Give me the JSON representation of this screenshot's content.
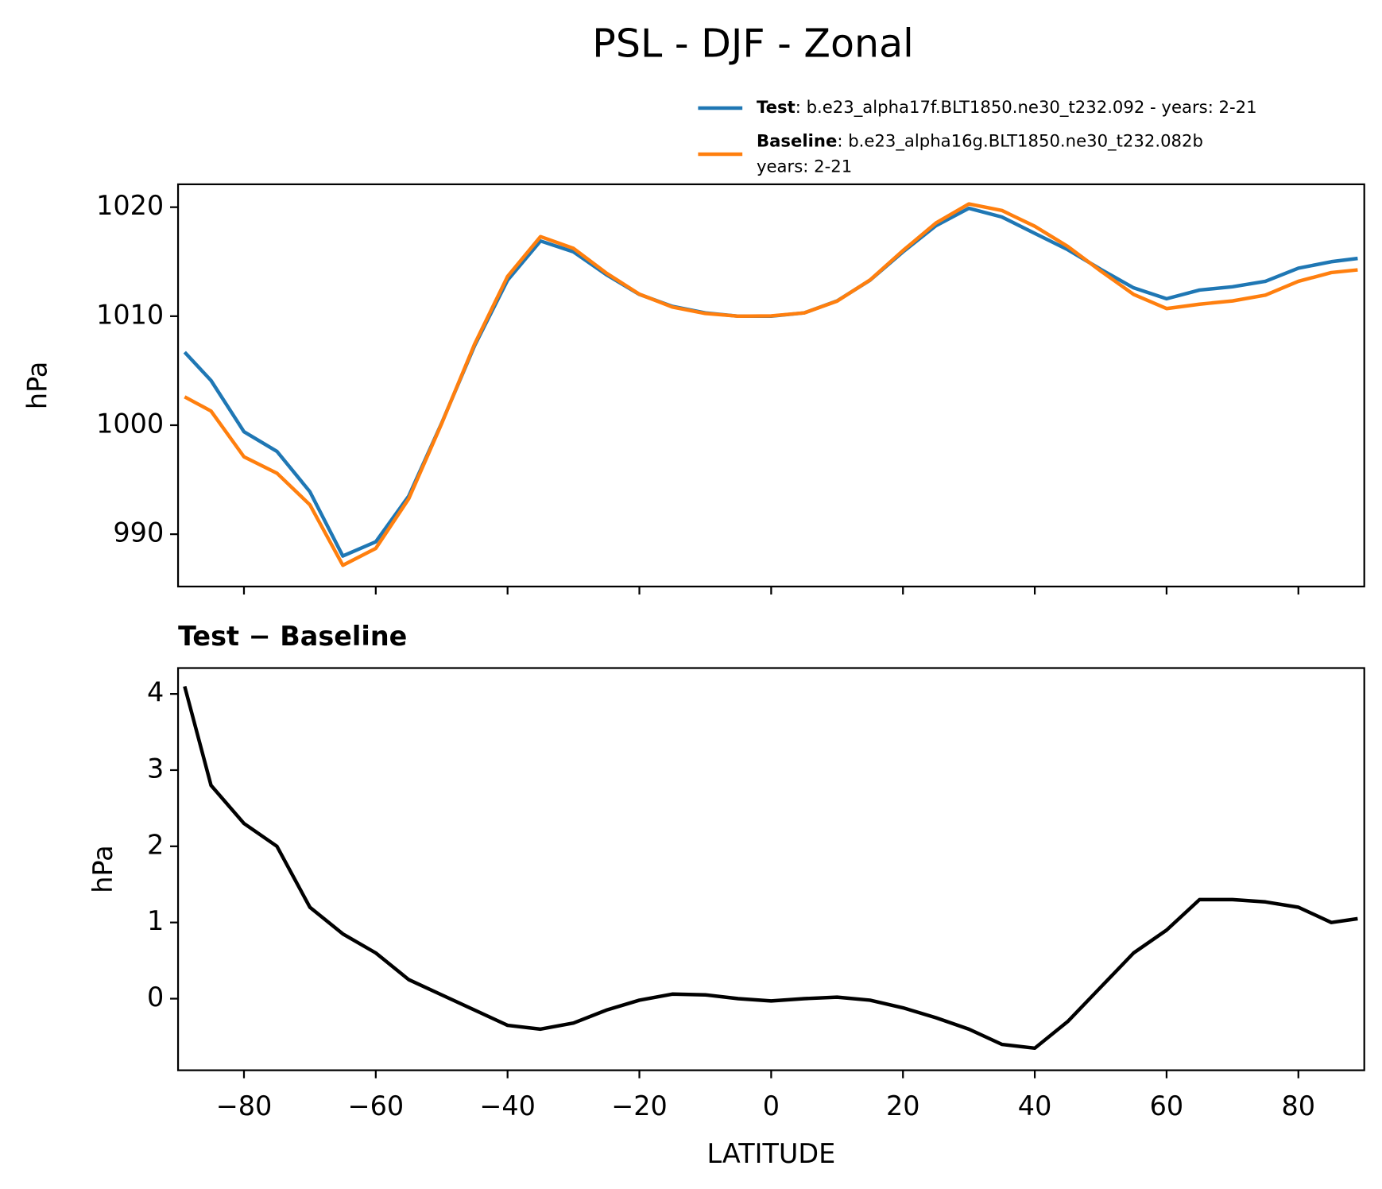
{
  "chart_data": [
    {
      "type": "line",
      "title": "PSL - DJF - Zonal",
      "ylabel": "hPa",
      "x": [
        -89,
        -85,
        -80,
        -75,
        -70,
        -65,
        -60,
        -55,
        -50,
        -45,
        -40,
        -35,
        -30,
        -25,
        -20,
        -15,
        -10,
        -5,
        0,
        5,
        10,
        15,
        20,
        25,
        30,
        35,
        40,
        45,
        50,
        55,
        60,
        65,
        70,
        75,
        80,
        85,
        89
      ],
      "series": [
        {
          "name": "Test",
          "description": [
            ": b.e23_alpha17f.BLT1850.ne30_t232.092 - years: 2-21"
          ],
          "color": "#1f77b4",
          "values": [
            1006.7,
            1004.1,
            999.4,
            997.6,
            993.9,
            988.0,
            989.3,
            993.5,
            1000.2,
            1007.3,
            1013.3,
            1016.9,
            1015.9,
            1013.8,
            1012.0,
            1010.9,
            1010.3,
            1010.0,
            1010.0,
            1010.3,
            1011.4,
            1013.3,
            1015.9,
            1018.3,
            1019.9,
            1019.1,
            1017.6,
            1016.1,
            1014.3,
            1012.6,
            1011.6,
            1012.4,
            1012.7,
            1013.2,
            1014.4,
            1015.0,
            1015.3
          ]
        },
        {
          "name": "Baseline",
          "description": [
            ": b.e23_alpha16g.BLT1850.ne30_t232.082b",
            "years: 2-21"
          ],
          "color": "#ff7f0e",
          "values": [
            1002.6,
            1001.3,
            997.1,
            995.6,
            992.7,
            987.15,
            988.7,
            993.25,
            1000.15,
            1007.45,
            1013.65,
            1017.3,
            1016.22,
            1013.95,
            1012.02,
            1010.84,
            1010.25,
            1010.0,
            1010.03,
            1010.3,
            1011.38,
            1013.32,
            1016.02,
            1018.55,
            1020.3,
            1019.7,
            1018.25,
            1016.4,
            1014.15,
            1012.0,
            1010.7,
            1011.1,
            1011.4,
            1011.93,
            1013.2,
            1014.0,
            1014.25
          ]
        }
      ],
      "xlim": [
        -90,
        90
      ],
      "xticks": [
        -80,
        -60,
        -40,
        -20,
        0,
        20,
        40,
        60,
        80
      ],
      "xtick_labels": false,
      "ylim": [
        985.2,
        1022.1
      ],
      "yticks": [
        990,
        1000,
        1010,
        1020
      ],
      "legend": "upper right"
    },
    {
      "type": "line",
      "title": "Test − Baseline",
      "ylabel": "hPa",
      "xlabel": "LATITUDE",
      "x": [
        -89,
        -85,
        -80,
        -75,
        -70,
        -65,
        -60,
        -55,
        -50,
        -45,
        -40,
        -35,
        -30,
        -25,
        -20,
        -15,
        -10,
        -5,
        0,
        5,
        10,
        15,
        20,
        25,
        30,
        35,
        40,
        45,
        50,
        55,
        60,
        65,
        70,
        75,
        80,
        85,
        89
      ],
      "series": [
        {
          "color": "#000000",
          "values": [
            4.1,
            2.8,
            2.3,
            2.0,
            1.2,
            0.85,
            0.6,
            0.25,
            0.05,
            -0.15,
            -0.35,
            -0.4,
            -0.32,
            -0.15,
            -0.02,
            0.06,
            0.05,
            0.0,
            -0.03,
            0.0,
            0.02,
            -0.02,
            -0.12,
            -0.25,
            -0.4,
            -0.6,
            -0.65,
            -0.3,
            0.15,
            0.6,
            0.9,
            1.3,
            1.3,
            1.27,
            1.2,
            1.0,
            1.05
          ]
        }
      ],
      "xlim": [
        -90,
        90
      ],
      "xticks": [
        {
          "value": -80,
          "label": "−80"
        },
        {
          "value": -60,
          "label": "−60"
        },
        {
          "value": -40,
          "label": "−40"
        },
        {
          "value": -20,
          "label": "−20"
        },
        0,
        20,
        40,
        60,
        80
      ],
      "ylim": [
        -0.94,
        4.34
      ],
      "yticks": [
        0,
        1,
        2,
        3,
        4
      ]
    }
  ]
}
